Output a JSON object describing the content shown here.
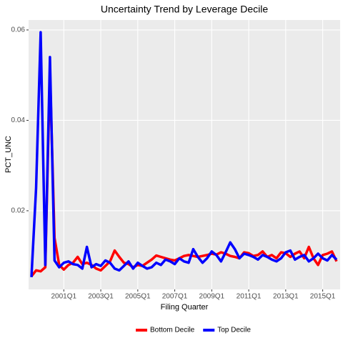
{
  "chart_data": {
    "type": "line",
    "title": "Uncertainty Trend by Leverage Decile",
    "x_label": "Filing Quarter",
    "y_label": "PCT_UNC",
    "categories": [
      null,
      null,
      null,
      null,
      null,
      null,
      null,
      "2001Q1",
      null,
      null,
      null,
      null,
      null,
      null,
      null,
      "2003Q1",
      null,
      null,
      null,
      null,
      null,
      null,
      null,
      "2005Q1",
      null,
      null,
      null,
      null,
      null,
      null,
      null,
      "2007Q1",
      null,
      null,
      null,
      null,
      null,
      null,
      null,
      "2009Q1",
      null,
      null,
      null,
      null,
      null,
      null,
      null,
      "2011Q1",
      null,
      null,
      null,
      null,
      null,
      null,
      null,
      "2013Q1",
      null,
      null,
      null,
      null,
      null,
      null,
      null,
      "2015Q1",
      null,
      null,
      null
    ],
    "series": [
      {
        "name": "Bottom Decile",
        "color": "#ff0000",
        "values": [
          0.0055,
          0.0068,
          0.0066,
          0.0075,
          0.051,
          0.014,
          0.008,
          0.007,
          0.008,
          0.0085,
          0.0098,
          0.0082,
          0.0085,
          0.008,
          0.0072,
          0.0068,
          0.0078,
          0.0088,
          0.0112,
          0.0098,
          0.0085,
          0.0082,
          0.0075,
          0.008,
          0.0078,
          0.0085,
          0.0092,
          0.0101,
          0.0098,
          0.0095,
          0.0092,
          0.009,
          0.0095,
          0.01,
          0.0102,
          0.01,
          0.0098,
          0.01,
          0.0102,
          0.0105,
          0.0103,
          0.0108,
          0.0105,
          0.01,
          0.0098,
          0.0095,
          0.0108,
          0.0106,
          0.01,
          0.0102,
          0.011,
          0.0098,
          0.0102,
          0.0095,
          0.0108,
          0.0106,
          0.0098,
          0.0105,
          0.011,
          0.0095,
          0.012,
          0.0095,
          0.008,
          0.0102,
          0.0105,
          0.011,
          0.0088
        ]
      },
      {
        "name": "Top Decile",
        "color": "#0000ff",
        "values": [
          0.0053,
          0.025,
          0.0595,
          0.008,
          0.054,
          0.009,
          0.0075,
          0.0085,
          0.0088,
          0.0082,
          0.008,
          0.0072,
          0.012,
          0.0075,
          0.0082,
          0.0078,
          0.009,
          0.0085,
          0.0072,
          0.0068,
          0.0078,
          0.0088,
          0.0072,
          0.0085,
          0.0078,
          0.0072,
          0.0075,
          0.0085,
          0.008,
          0.0092,
          0.0088,
          0.0082,
          0.0095,
          0.0088,
          0.0085,
          0.0115,
          0.0098,
          0.0085,
          0.0095,
          0.011,
          0.0102,
          0.0088,
          0.0108,
          0.013,
          0.0115,
          0.0095,
          0.0105,
          0.0102,
          0.0098,
          0.0092,
          0.0102,
          0.0098,
          0.0092,
          0.0088,
          0.0095,
          0.0108,
          0.0112,
          0.0092,
          0.0098,
          0.0102,
          0.0088,
          0.0095,
          0.0105,
          0.0095,
          0.009,
          0.0102,
          0.0092
        ]
      }
    ],
    "ylim": [
      0.0026,
      0.0622
    ],
    "yticks": [
      0.02,
      0.04,
      0.06
    ],
    "grid": true,
    "legend": "bottom"
  }
}
